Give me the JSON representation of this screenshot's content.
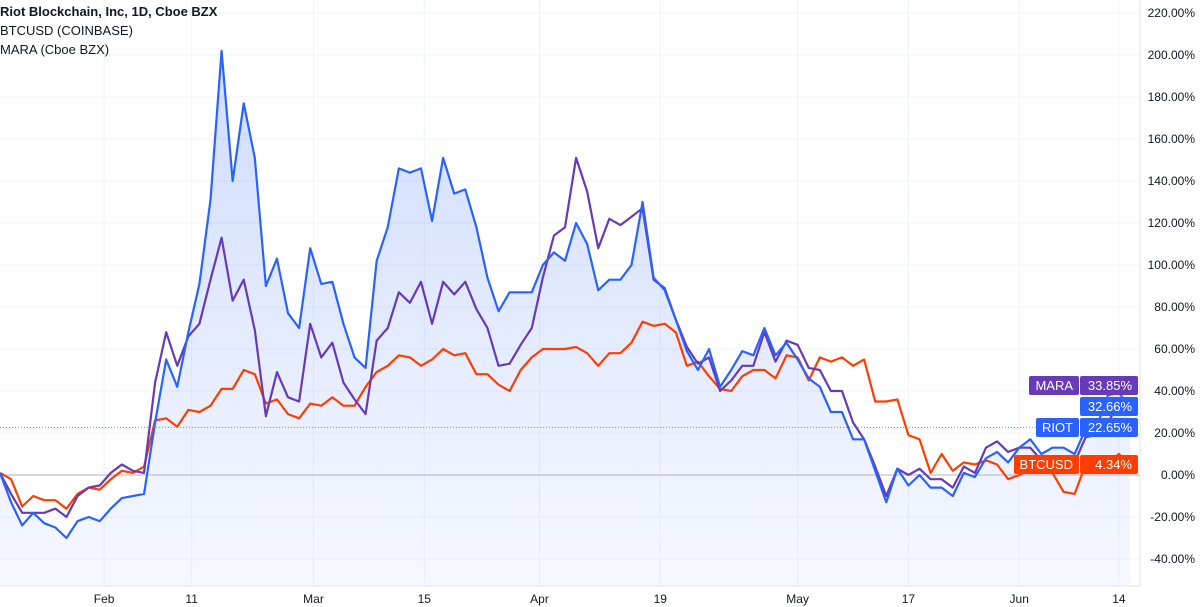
{
  "legend": {
    "main": "Riot Blockchain, Inc, 1D, Cboe BZX",
    "compare1": "BTCUSD (COINBASE)",
    "compare2": "MARA (Cboe BZX)"
  },
  "colors": {
    "RIOT": "#2962ff",
    "MARA": "#673ab7",
    "BTCUSD": "#ff3d00",
    "grid": "#f0f3fa",
    "zero_line": "#b2b5be"
  },
  "tags": {
    "mara": {
      "name": "MARA",
      "value": "33.85%"
    },
    "riot_last": {
      "value": "32.66%"
    },
    "riot": {
      "name": "RIOT",
      "value": "22.65%"
    },
    "btc": {
      "name": "BTCUSD",
      "value": "4.34%"
    }
  },
  "chart_data": {
    "type": "line",
    "ylabel_unit": "%",
    "ylim": [
      -50,
      225
    ],
    "yticks": [
      "220.00%",
      "200.00%",
      "180.00%",
      "160.00%",
      "140.00%",
      "120.00%",
      "100.00%",
      "80.00%",
      "60.00%",
      "40.00%",
      "20.00%",
      "0.00%",
      "-20.00%",
      "-40.00%"
    ],
    "ytick_values": [
      220,
      200,
      180,
      160,
      140,
      120,
      100,
      80,
      60,
      40,
      20,
      0,
      -20,
      -40
    ],
    "x_ticks": [
      {
        "label": "Feb",
        "index": 9.4
      },
      {
        "label": "11",
        "index": 17.3
      },
      {
        "label": "Mar",
        "index": 28.3
      },
      {
        "label": "15",
        "index": 38.3
      },
      {
        "label": "Apr",
        "index": 48.7
      },
      {
        "label": "19",
        "index": 59.6
      },
      {
        "label": "May",
        "index": 72
      },
      {
        "label": "17",
        "index": 82
      },
      {
        "label": "Jun",
        "index": 92
      },
      {
        "label": "14",
        "index": 101
      }
    ],
    "grid": true,
    "series": [
      {
        "name": "RIOT",
        "area": true,
        "values": [
          1,
          -13,
          -24,
          -18,
          -23,
          -25,
          -30,
          -22,
          -20,
          -22,
          -16,
          -11,
          -10,
          -9,
          25,
          55,
          42,
          68,
          91,
          131,
          202,
          140,
          177,
          151,
          90,
          103,
          77,
          70,
          108,
          91,
          92,
          72,
          56,
          51,
          102,
          118,
          146,
          144,
          146,
          121,
          151,
          134,
          136,
          118,
          94,
          78,
          87,
          87,
          87,
          100,
          106,
          102,
          120,
          110,
          88,
          93,
          93,
          100,
          130,
          94,
          88,
          74,
          59,
          50,
          60,
          42,
          50,
          59,
          57,
          70,
          57,
          63,
          55,
          46,
          42,
          30,
          30,
          17,
          17,
          2,
          -13,
          3,
          -5,
          0,
          -6,
          -6,
          -10,
          1,
          -1,
          8,
          11,
          6,
          13,
          17,
          10,
          13,
          13,
          10,
          22,
          23,
          38,
          39,
          32.66
        ]
      },
      {
        "name": "MARA",
        "values": [
          1,
          -9,
          -18,
          -18,
          -18,
          -16,
          -20,
          -10,
          -6,
          -5,
          1,
          5,
          2,
          1,
          44,
          68,
          52,
          66,
          72,
          93,
          113,
          83,
          93,
          69,
          28,
          49,
          37,
          35,
          72,
          56,
          63,
          44,
          36,
          29,
          64,
          70,
          87,
          82,
          92,
          72,
          92,
          86,
          92,
          79,
          70,
          52,
          53,
          62,
          70,
          94,
          114,
          118,
          151,
          135,
          108,
          122,
          119,
          123,
          127,
          93,
          89,
          74,
          61,
          53,
          56,
          40,
          45,
          52,
          52,
          68,
          54,
          64,
          62,
          51,
          50,
          40,
          40,
          25,
          17,
          4,
          -10,
          3,
          0,
          3,
          -2,
          -2,
          -6,
          4,
          1,
          13,
          16,
          11,
          13,
          13,
          7,
          9,
          9,
          6,
          18,
          19,
          25,
          34,
          33.85
        ]
      },
      {
        "name": "BTCUSD",
        "values": [
          1,
          -2,
          -15,
          -10,
          -12,
          -12,
          -16,
          -9,
          -6,
          -7,
          -2,
          2,
          1,
          4,
          26,
          27,
          23,
          31,
          30,
          33,
          41,
          41,
          50,
          48,
          34,
          36,
          29,
          27,
          34,
          33,
          37,
          33,
          33,
          42,
          49,
          52,
          57,
          56,
          52,
          55,
          60,
          57,
          58,
          48,
          48,
          43,
          40,
          50,
          56,
          60,
          60,
          60,
          61,
          58,
          52,
          58,
          58,
          63,
          73,
          71,
          72,
          68,
          52,
          54,
          47,
          41,
          40,
          47,
          50,
          50,
          46,
          57,
          56,
          45,
          56,
          54,
          56,
          52,
          55,
          35,
          35,
          36,
          19,
          17,
          1,
          10,
          2,
          6,
          5,
          7,
          5,
          -2,
          0,
          3,
          7,
          1,
          -8,
          -9,
          5,
          1,
          6,
          10,
          4.34
        ]
      }
    ]
  }
}
